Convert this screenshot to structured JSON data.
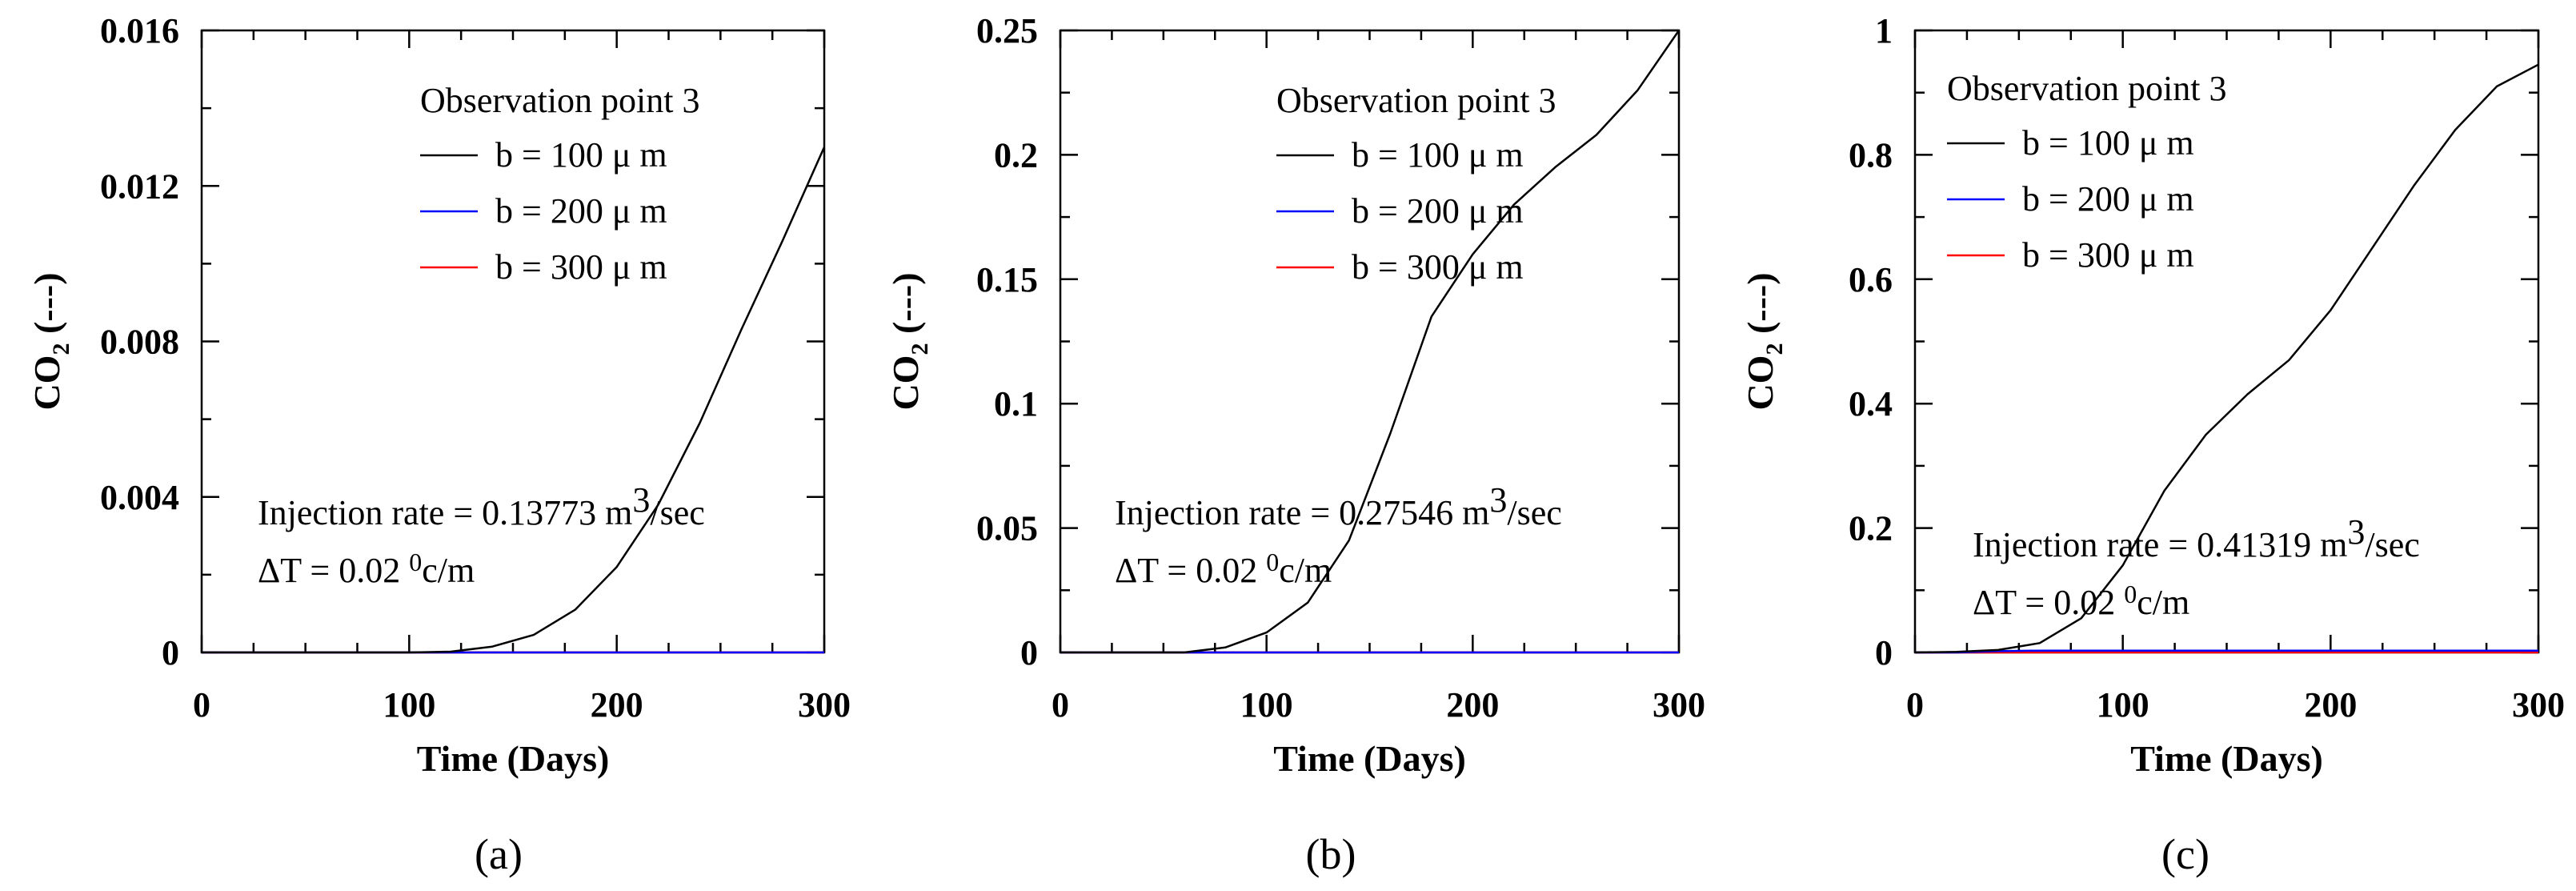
{
  "chart_data": [
    {
      "type": "line",
      "caption": "(a)",
      "xlabel": "Time (Days)",
      "ylabel": "CO2 (---)",
      "xlim": [
        0,
        300
      ],
      "ylim": [
        0,
        0.016
      ],
      "xticks": [
        "0",
        "100",
        "200",
        "300"
      ],
      "yticks": [
        "0",
        "0.004",
        "0.008",
        "0.012",
        "0.016"
      ],
      "legend_title": "Observation point 3",
      "annotation_rate": "Injection rate = 0.13773 m3/sec",
      "annotation_dt": "ΔT = 0.02 0c/m",
      "x": [
        0,
        100,
        120,
        140,
        160,
        180,
        200,
        220,
        240,
        260,
        280,
        300
      ],
      "series": [
        {
          "name": "b = 100 μ m",
          "color": "#000000",
          "values": [
            0,
            0,
            2e-05,
            0.00015,
            0.00045,
            0.0011,
            0.0022,
            0.0038,
            0.0059,
            0.0083,
            0.0106,
            0.013
          ]
        },
        {
          "name": "b = 200 μ m",
          "color": "#0000ff",
          "values": [
            0,
            0,
            0,
            0,
            0,
            0,
            0,
            0,
            0,
            0,
            0,
            0
          ]
        },
        {
          "name": "b = 300 μ m",
          "color": "#ff0000",
          "values": [
            0,
            0,
            0,
            0,
            0,
            0,
            0,
            0,
            0,
            0,
            0,
            0
          ]
        }
      ]
    },
    {
      "type": "line",
      "caption": "(b)",
      "xlabel": "Time (Days)",
      "ylabel": "CO2 (---)",
      "xlim": [
        0,
        300
      ],
      "ylim": [
        0,
        0.25
      ],
      "xticks": [
        "0",
        "100",
        "200",
        "300"
      ],
      "yticks": [
        "0",
        "0.05",
        "0.1",
        "0.15",
        "0.2",
        "0.25"
      ],
      "legend_title": "Observation point 3",
      "annotation_rate": "Injection rate = 0.27546 m3/sec",
      "annotation_dt": "ΔT = 0.02 0c/m",
      "x": [
        0,
        60,
        80,
        100,
        120,
        140,
        160,
        180,
        200,
        220,
        240,
        260,
        280,
        300
      ],
      "series": [
        {
          "name": "b = 100 μ m",
          "color": "#000000",
          "values": [
            0,
            0,
            0.002,
            0.008,
            0.02,
            0.045,
            0.088,
            0.135,
            0.16,
            0.18,
            0.195,
            0.208,
            0.226,
            0.25
          ]
        },
        {
          "name": "b = 200 μ m",
          "color": "#0000ff",
          "values": [
            0,
            0,
            0,
            0,
            0,
            0,
            0,
            0,
            0,
            0,
            0,
            0,
            0,
            0
          ]
        },
        {
          "name": "b = 300 μ m",
          "color": "#ff0000",
          "values": [
            0,
            0,
            0,
            0,
            0,
            0,
            0,
            0,
            0,
            0,
            0,
            0,
            0,
            0
          ]
        }
      ]
    },
    {
      "type": "line",
      "caption": "(c)",
      "xlabel": "Time (Days)",
      "ylabel": "CO2 (---)",
      "xlim": [
        0,
        300
      ],
      "ylim": [
        0,
        1
      ],
      "xticks": [
        "0",
        "100",
        "200",
        "300"
      ],
      "yticks": [
        "0",
        "0.2",
        "0.4",
        "0.6",
        "0.8",
        "1"
      ],
      "legend_title": "Observation point 3",
      "annotation_rate": "Injection rate = 0.41319 m3/sec",
      "annotation_dt": "ΔT = 0.02 0c/m",
      "x": [
        0,
        20,
        40,
        60,
        80,
        100,
        120,
        140,
        160,
        180,
        200,
        220,
        240,
        260,
        280,
        300
      ],
      "series": [
        {
          "name": "b = 100 μ m",
          "color": "#000000",
          "values": [
            0,
            0.001,
            0.004,
            0.015,
            0.055,
            0.14,
            0.26,
            0.35,
            0.415,
            0.47,
            0.55,
            0.65,
            0.75,
            0.84,
            0.91,
            0.945
          ]
        },
        {
          "name": "b = 200 μ m",
          "color": "#0000ff",
          "values": [
            0,
            0,
            0.002,
            0.003,
            0.003,
            0.003,
            0.003,
            0.003,
            0.003,
            0.003,
            0.003,
            0.003,
            0.003,
            0.003,
            0.003,
            0.003
          ]
        },
        {
          "name": "b = 300 μ m",
          "color": "#ff0000",
          "values": [
            0,
            0,
            0,
            0,
            0,
            0,
            0,
            0,
            0,
            0,
            0,
            0,
            0,
            0,
            0,
            0
          ]
        }
      ]
    }
  ]
}
